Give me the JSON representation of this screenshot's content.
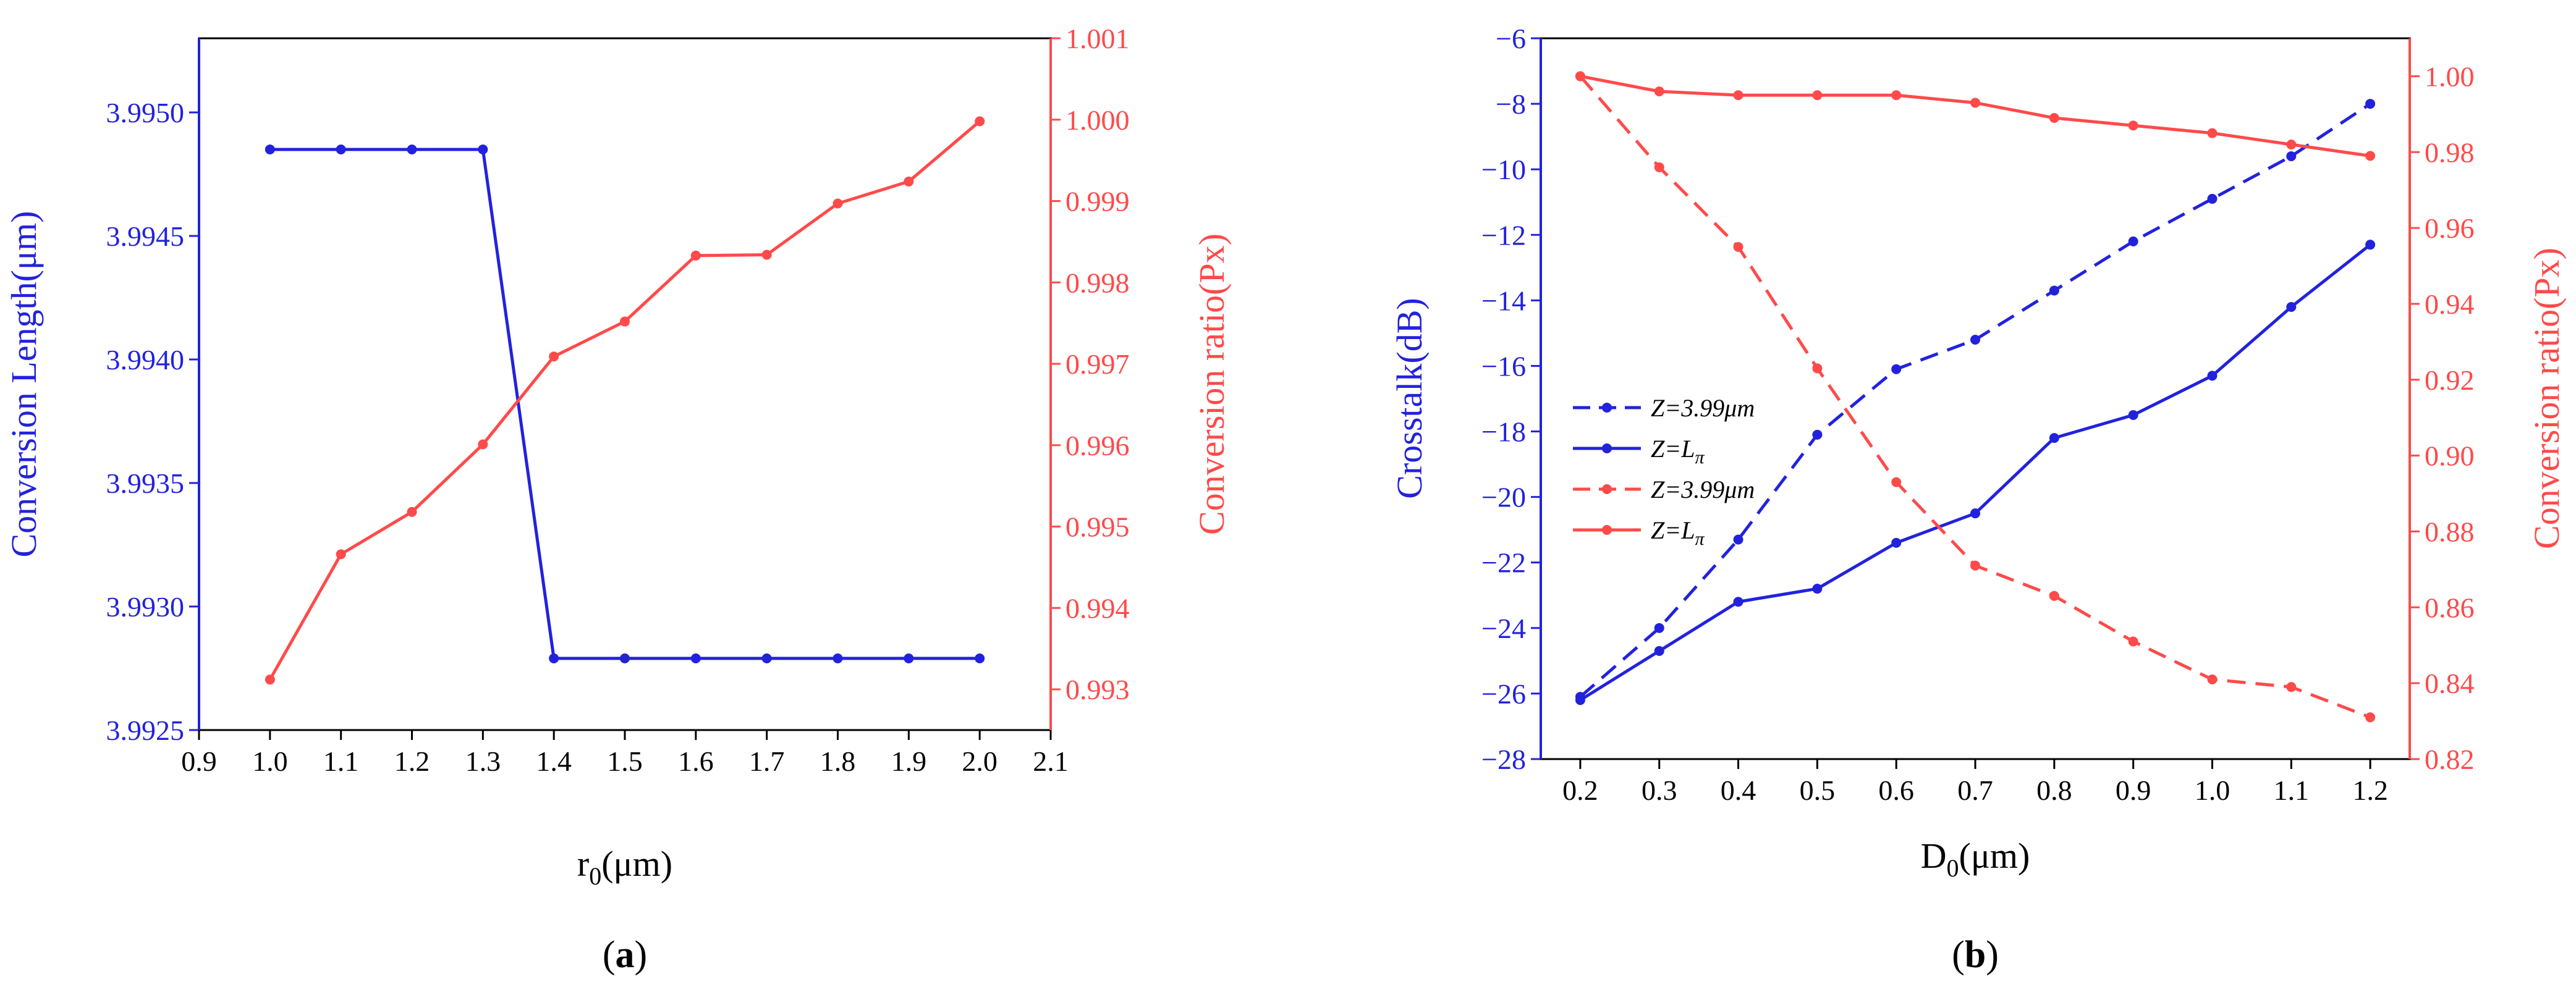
{
  "colors": {
    "blue": "#2222dd",
    "red": "#ff4a4a",
    "axis": "#000000"
  },
  "chart_data": [
    {
      "type": "line",
      "panel_label_open": "(",
      "panel_label_letter": "a",
      "panel_label_close": ")",
      "xlabel_main": "r",
      "xlabel_sub": "0",
      "xlabel_rest": "(μm)",
      "ylabel_left": "Conversion Length(μm)",
      "ylabel_right": "Conversion ratio(Px)",
      "xlim": [
        0.9,
        2.1
      ],
      "ylim_left": [
        3.9925,
        3.9953
      ],
      "ylim_right": [
        0.9925,
        1.001
      ],
      "xticks": [
        0.9,
        1.0,
        1.1,
        1.2,
        1.3,
        1.4,
        1.5,
        1.6,
        1.7,
        1.8,
        1.9,
        2.0,
        2.1
      ],
      "xtick_labels": [
        "0.9",
        "1.0",
        "1.1",
        "1.2",
        "1.3",
        "1.4",
        "1.5",
        "1.6",
        "1.7",
        "1.8",
        "1.9",
        "2.0",
        "2.1"
      ],
      "yticks_left": [
        3.9925,
        3.993,
        3.9935,
        3.994,
        3.9945,
        3.995
      ],
      "ytick_labels_left": [
        "3.9925",
        "3.9930",
        "3.9935",
        "3.9940",
        "3.9945",
        "3.9950"
      ],
      "yticks_right": [
        0.993,
        0.994,
        0.995,
        0.996,
        0.997,
        0.998,
        0.999,
        1.0,
        1.001
      ],
      "ytick_labels_right": [
        "0.993",
        "0.994",
        "0.995",
        "0.996",
        "0.997",
        "0.998",
        "0.999",
        "1.000",
        "1.001"
      ],
      "series": [
        {
          "name": "Conversion Length",
          "axis": "left",
          "color": "blue",
          "dash": "solid",
          "x": [
            1.0,
            1.1,
            1.2,
            1.3,
            1.4,
            1.5,
            1.6,
            1.7,
            1.8,
            1.9,
            2.0
          ],
          "y": [
            3.99485,
            3.99485,
            3.99485,
            3.99485,
            3.99279,
            3.99279,
            3.99279,
            3.99279,
            3.99279,
            3.99279,
            3.99279
          ]
        },
        {
          "name": "Conversion ratio",
          "axis": "right",
          "color": "red",
          "dash": "solid",
          "x": [
            1.0,
            1.1,
            1.2,
            1.3,
            1.4,
            1.5,
            1.6,
            1.7,
            1.8,
            1.9,
            2.0
          ],
          "y": [
            0.99312,
            0.99466,
            0.99518,
            0.99601,
            0.99709,
            0.99752,
            0.99833,
            0.99834,
            0.99897,
            0.99924,
            0.99998
          ]
        }
      ]
    },
    {
      "type": "line",
      "panel_label_open": "(",
      "panel_label_letter": "b",
      "panel_label_close": ")",
      "xlabel_main": "D",
      "xlabel_sub": "0",
      "xlabel_rest": "(μm)",
      "ylabel_left": "Crosstalk(dB)",
      "ylabel_right": "Conversion ratio(Px)",
      "xlim": [
        0.15,
        1.25
      ],
      "ylim_left": [
        -28,
        -6
      ],
      "ylim_right": [
        0.82,
        1.01
      ],
      "xticks": [
        0.2,
        0.3,
        0.4,
        0.5,
        0.6,
        0.7,
        0.8,
        0.9,
        1.0,
        1.1,
        1.2
      ],
      "xtick_labels": [
        "0.2",
        "0.3",
        "0.4",
        "0.5",
        "0.6",
        "0.7",
        "0.8",
        "0.9",
        "1.0",
        "1.1",
        "1.2"
      ],
      "yticks_left": [
        -28,
        -26,
        -24,
        -22,
        -20,
        -18,
        -16,
        -14,
        -12,
        -10,
        -8,
        -6
      ],
      "ytick_labels_left": [
        "−28",
        "−26",
        "−24",
        "−22",
        "−20",
        "−18",
        "−16",
        "−14",
        "−12",
        "−10",
        "−8",
        "−6"
      ],
      "yticks_right": [
        0.82,
        0.84,
        0.86,
        0.88,
        0.9,
        0.92,
        0.94,
        0.96,
        0.98,
        1.0
      ],
      "ytick_labels_right": [
        "0.82",
        "0.84",
        "0.86",
        "0.88",
        "0.90",
        "0.92",
        "0.94",
        "0.96",
        "0.98",
        "1.00"
      ],
      "legend_position": "middle-left",
      "legend": [
        {
          "main": "Z=3.99",
          "tail": "μm",
          "sub": "",
          "color": "blue",
          "dash": "dashed"
        },
        {
          "main": "Z=L",
          "tail": "",
          "sub": "π",
          "color": "blue",
          "dash": "solid"
        },
        {
          "main": "Z=3.99",
          "tail": "μm",
          "sub": "",
          "color": "red",
          "dash": "dashed"
        },
        {
          "main": "Z=L",
          "tail": "",
          "sub": "π",
          "color": "red",
          "dash": "solid"
        }
      ],
      "series": [
        {
          "name": "Crosstalk Z=3.99μm",
          "axis": "left",
          "color": "blue",
          "dash": "dashed",
          "x": [
            0.2,
            0.3,
            0.4,
            0.5,
            0.6,
            0.7,
            0.8,
            0.9,
            1.0,
            1.1,
            1.2
          ],
          "y": [
            -26.1,
            -24.0,
            -21.3,
            -18.1,
            -16.1,
            -15.2,
            -13.7,
            -12.2,
            -10.9,
            -9.6,
            -8.0
          ]
        },
        {
          "name": "Crosstalk Z=Lπ",
          "axis": "left",
          "color": "blue",
          "dash": "solid",
          "x": [
            0.2,
            0.3,
            0.4,
            0.5,
            0.6,
            0.7,
            0.8,
            0.9,
            1.0,
            1.1,
            1.2
          ],
          "y": [
            -26.2,
            -24.7,
            -23.2,
            -22.8,
            -21.4,
            -20.5,
            -18.2,
            -17.5,
            -16.3,
            -14.2,
            -12.3
          ]
        },
        {
          "name": "Conversion ratio Z=3.99μm",
          "axis": "right",
          "color": "red",
          "dash": "dashed",
          "x": [
            0.2,
            0.3,
            0.4,
            0.5,
            0.6,
            0.7,
            0.8,
            0.9,
            1.0,
            1.1,
            1.2
          ],
          "y": [
            1.0,
            0.976,
            0.955,
            0.923,
            0.893,
            0.871,
            0.863,
            0.851,
            0.841,
            0.839,
            0.831
          ]
        },
        {
          "name": "Conversion ratio Z=Lπ",
          "axis": "right",
          "color": "red",
          "dash": "solid",
          "x": [
            0.2,
            0.3,
            0.4,
            0.5,
            0.6,
            0.7,
            0.8,
            0.9,
            1.0,
            1.1,
            1.2
          ],
          "y": [
            1.0,
            0.996,
            0.995,
            0.995,
            0.995,
            0.993,
            0.989,
            0.987,
            0.985,
            0.982,
            0.979
          ]
        }
      ]
    }
  ]
}
